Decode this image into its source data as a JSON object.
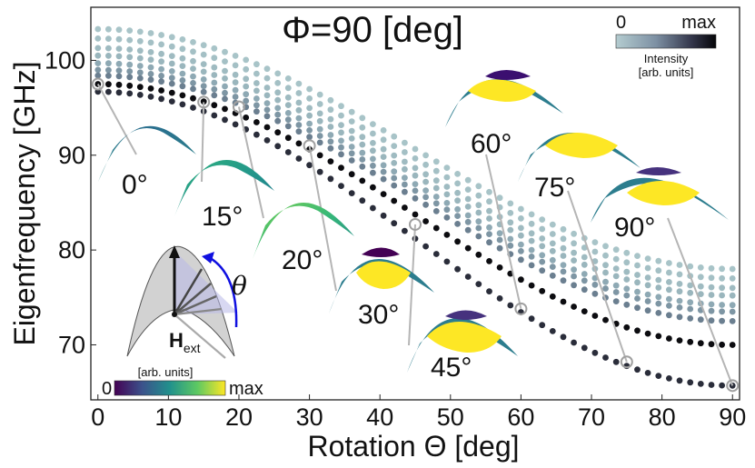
{
  "chart_data": {
    "type": "scatter",
    "title": "Φ=90 [deg]",
    "xlabel": "Rotation Θ [deg]",
    "ylabel": "Eigenfrequency [GHz]",
    "xlim": [
      -1,
      91
    ],
    "ylim": [
      64.2,
      105.6
    ],
    "xticks": [
      "0",
      "10",
      "20",
      "30",
      "40",
      "50",
      "60",
      "70",
      "80",
      "90"
    ],
    "yticks": [
      "70",
      "80",
      "90",
      "100"
    ],
    "series": [
      {
        "start": 103.3,
        "end": 78.0,
        "color": "#a8c4c8"
      },
      {
        "start": 102.3,
        "end": 77.0,
        "color": "#a4c0c5"
      },
      {
        "start": 101.3,
        "end": 76.0,
        "color": "#9fbbc1"
      },
      {
        "start": 100.5,
        "end": 75.2,
        "color": "#9ab6bd"
      },
      {
        "start": 99.7,
        "end": 74.2,
        "color": "#8ea9b4"
      },
      {
        "start": 99.0,
        "end": 73.5,
        "color": "#7e96a4"
      },
      {
        "start": 98.4,
        "end": 72.5,
        "color": "#6b7f90"
      },
      {
        "start": 97.5,
        "end": 70.0,
        "color": "#0c0c10"
      },
      {
        "start": 96.7,
        "end": 65.7,
        "color": "#2a2d3a"
      }
    ],
    "highlighted_points": [
      {
        "x": 0,
        "y": 97.5
      },
      {
        "x": 15,
        "y": 95.6
      },
      {
        "x": 20,
        "y": 95.1
      },
      {
        "x": 30,
        "y": 91.0
      },
      {
        "x": 45,
        "y": 82.7
      },
      {
        "x": 60,
        "y": 73.8
      },
      {
        "x": 75,
        "y": 68.2
      },
      {
        "x": 90,
        "y": 65.7
      }
    ],
    "mode_labels": [
      "0°",
      "15°",
      "20°",
      "30°",
      "45°",
      "60°",
      "75°",
      "90°"
    ],
    "inset_colorbar": {
      "min_label": "0",
      "max_label": "max",
      "units": "[arb. units]"
    },
    "intensity_colorbar": {
      "min_label": "0",
      "max_label": "max",
      "title": "Intensity",
      "units": "[arb. units]"
    },
    "inset_labels": {
      "theta": "θ",
      "field": "H",
      "field_subscript": "ext"
    }
  }
}
